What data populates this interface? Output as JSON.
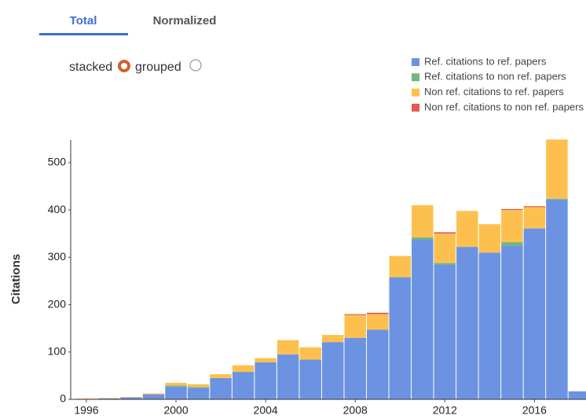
{
  "tabs": [
    "Total",
    "Normalized"
  ],
  "options": [
    "stacked",
    "grouped"
  ],
  "chart_data": {
    "type": "bar",
    "stacked": true,
    "y_label": "Citations",
    "x": [
      1996,
      1997,
      1998,
      1999,
      2000,
      2001,
      2002,
      2003,
      2004,
      2005,
      2006,
      2007,
      2008,
      2009,
      2010,
      2011,
      2012,
      2013,
      2014,
      2015,
      2016,
      2017,
      2018
    ],
    "series": [
      {
        "name": "Ref. citations to ref. papers",
        "color": "#6b93e2",
        "values": [
          1,
          2,
          4,
          10,
          27,
          24,
          45,
          58,
          78,
          95,
          84,
          121,
          130,
          147,
          258,
          338,
          285,
          322,
          310,
          325,
          361,
          422,
          17
        ]
      },
      {
        "name": "Ref. citations to non ref. papers",
        "color": "#72b879",
        "values": [
          0,
          0,
          0,
          0,
          2,
          2,
          0,
          0,
          0,
          0,
          0,
          0,
          0,
          0,
          0,
          4,
          3,
          0,
          0,
          7,
          0,
          2,
          0
        ]
      },
      {
        "name": "Non ref. citations to ref. papers",
        "color": "#fdc04f",
        "values": [
          1,
          1,
          1,
          1,
          6,
          6,
          8,
          14,
          9,
          30,
          26,
          15,
          48,
          33,
          45,
          68,
          62,
          76,
          60,
          68,
          45,
          125,
          0
        ]
      },
      {
        "name": "Non ref. citations to non ref. papers",
        "color": "#e25a50",
        "values": [
          0,
          0,
          0,
          1,
          0,
          0,
          0,
          0,
          0,
          0,
          0,
          0,
          2,
          3,
          0,
          0,
          3,
          0,
          0,
          2,
          2,
          0,
          0
        ]
      }
    ],
    "xlim": [
      1995.3,
      2018.3
    ],
    "ylim": [
      0,
      548
    ],
    "xticks": [
      1996,
      2000,
      2004,
      2008,
      2012,
      2016
    ],
    "yticks": [
      0,
      100,
      200,
      300,
      400,
      500
    ],
    "legend": "top-right"
  }
}
